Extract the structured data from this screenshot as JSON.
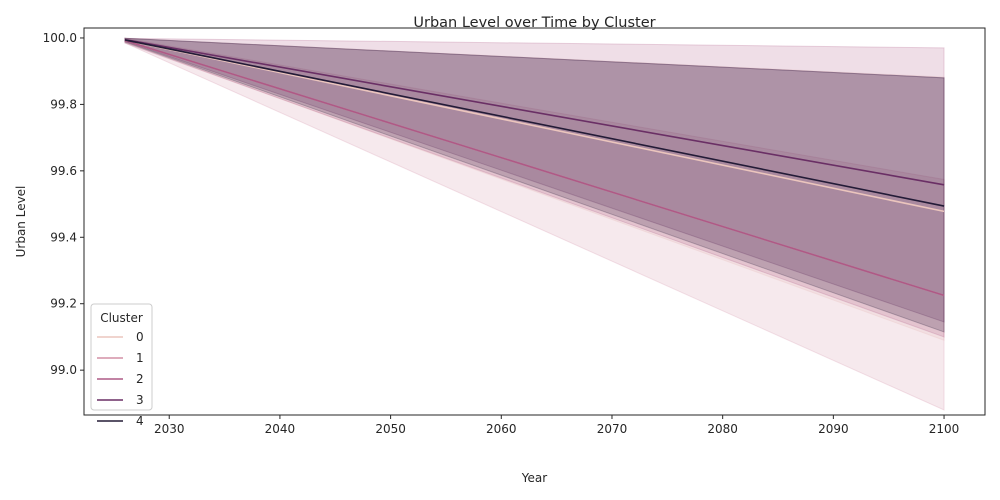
{
  "chart_data": {
    "type": "line",
    "title": "Urban Level over Time by Cluster",
    "xlabel": "Year",
    "ylabel": "Urban Level",
    "xlim": [
      2022.3,
      2103.7
    ],
    "ylim": [
      98.865,
      100.03
    ],
    "xticks": [
      2030,
      2040,
      2050,
      2060,
      2070,
      2080,
      2090,
      2100
    ],
    "yticks": [
      99.0,
      99.2,
      99.4,
      99.6,
      99.8,
      100.0
    ],
    "ytick_labels": [
      "99.0",
      "99.2",
      "99.4",
      "99.6",
      "99.8",
      "100.0"
    ],
    "grid": false,
    "legend": {
      "title": "Cluster",
      "placement": "lower-left"
    },
    "x": [
      2026,
      2100
    ],
    "series": [
      {
        "name": "0",
        "color": "#ebc5bd",
        "values": [
          99.993,
          99.478
        ],
        "band_lower": [
          99.987,
          99.09
        ],
        "band_upper": [
          99.999,
          99.882
        ]
      },
      {
        "name": "1",
        "color": "#d391a6",
        "values": [
          99.992,
          99.225
        ],
        "band_lower": [
          99.985,
          98.88
        ],
        "band_upper": [
          99.999,
          99.574
        ]
      },
      {
        "name": "2",
        "color": "#ae5a86",
        "values": [
          99.992,
          99.225
        ],
        "band_lower": [
          99.985,
          99.1
        ],
        "band_upper": [
          99.999,
          99.97
        ]
      },
      {
        "name": "3",
        "color": "#6a2f65",
        "values": [
          99.995,
          99.558
        ],
        "band_lower": [
          99.99,
          99.145
        ],
        "band_upper": [
          99.999,
          99.88
        ]
      },
      {
        "name": "4",
        "color": "#231b37",
        "values": [
          99.994,
          99.494
        ],
        "band_lower": [
          99.988,
          99.115
        ],
        "band_upper": [
          99.999,
          99.88
        ]
      }
    ]
  }
}
